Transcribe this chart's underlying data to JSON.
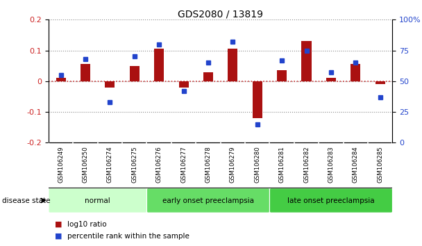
{
  "title": "GDS2080 / 13819",
  "samples": [
    "GSM106249",
    "GSM106250",
    "GSM106274",
    "GSM106275",
    "GSM106276",
    "GSM106277",
    "GSM106278",
    "GSM106279",
    "GSM106280",
    "GSM106281",
    "GSM106282",
    "GSM106283",
    "GSM106284",
    "GSM106285"
  ],
  "log10_ratio": [
    0.01,
    0.055,
    -0.02,
    0.05,
    0.105,
    -0.02,
    0.03,
    0.105,
    -0.12,
    0.035,
    0.13,
    0.01,
    0.055,
    -0.01
  ],
  "percentile_rank": [
    55,
    68,
    33,
    70,
    80,
    42,
    65,
    82,
    15,
    67,
    75,
    57,
    65,
    37
  ],
  "groups": [
    {
      "label": "normal",
      "start": 0,
      "end": 4,
      "color": "#ccffcc"
    },
    {
      "label": "early onset preeclampsia",
      "start": 4,
      "end": 9,
      "color": "#66dd66"
    },
    {
      "label": "late onset preeclampsia",
      "start": 9,
      "end": 14,
      "color": "#44cc44"
    }
  ],
  "ylim_left": [
    -0.2,
    0.2
  ],
  "ylim_right": [
    0,
    100
  ],
  "yticks_left": [
    -0.2,
    -0.1,
    0.0,
    0.1,
    0.2
  ],
  "yticks_right": [
    0,
    25,
    50,
    75,
    100
  ],
  "bar_color": "#aa1111",
  "dot_color": "#2244cc",
  "zero_line_color": "#cc3333",
  "grid_color": "#888888",
  "background_color": "#ffffff",
  "plot_bg_color": "#ffffff",
  "tick_label_color_left": "#cc2222",
  "tick_label_color_right": "#2244cc",
  "sample_box_color": "#cccccc",
  "title_fontsize": 10,
  "bar_width": 0.4
}
